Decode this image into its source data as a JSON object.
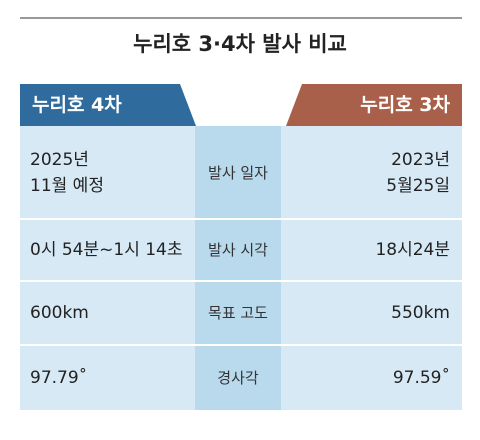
{
  "title": "누리호 3·4차 발사 비교",
  "header": {
    "left": "누리호 4차",
    "right": "누리호 3차"
  },
  "rows": [
    {
      "label": "발사 일자",
      "left": [
        "2025년",
        "11월 예정"
      ],
      "right": [
        "2023년",
        "5월25일"
      ]
    },
    {
      "label": "발사 시각",
      "left": [
        "0시 54분~1시 14초"
      ],
      "right": [
        "18시24분"
      ]
    },
    {
      "label": "목표 고도",
      "left": [
        "600km"
      ],
      "right": [
        "550km"
      ]
    },
    {
      "label": "경사각",
      "left": [
        "97.79˚"
      ],
      "right": [
        "97.59˚"
      ]
    }
  ]
}
